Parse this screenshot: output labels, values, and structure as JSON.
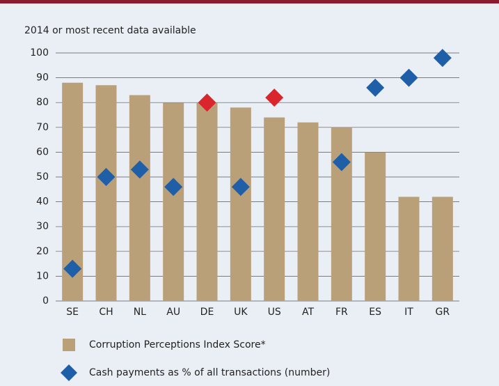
{
  "chart_data": {
    "type": "bar_scatter",
    "subtitle": "2014 or most recent data available",
    "categories": [
      "SE",
      "CH",
      "NL",
      "AU",
      "DE",
      "UK",
      "US",
      "AT",
      "FR",
      "ES",
      "IT",
      "GR"
    ],
    "series": [
      {
        "name": "Corruption Perceptions Index Score*",
        "type": "bar",
        "color": "#b9a078",
        "values": [
          88,
          87,
          83,
          80,
          80,
          78,
          74,
          72,
          70,
          60,
          42,
          42
        ]
      },
      {
        "name": "Cash payments as % of all transactions (number)",
        "type": "scatter",
        "color": "#1f5fa8",
        "colors": [
          "#1f5fa8",
          "#1f5fa8",
          "#1f5fa8",
          "#1f5fa8",
          "#d9262c",
          "#1f5fa8",
          "#d9262c",
          null,
          "#1f5fa8",
          "#1f5fa8",
          "#1f5fa8",
          "#1f5fa8"
        ],
        "values": [
          13,
          50,
          53,
          46,
          80,
          46,
          82,
          null,
          56,
          86,
          90,
          98
        ]
      }
    ],
    "ylim": [
      0,
      100
    ],
    "yticks": [
      0,
      10,
      20,
      30,
      40,
      50,
      60,
      70,
      80,
      90,
      100
    ],
    "grid": true
  }
}
